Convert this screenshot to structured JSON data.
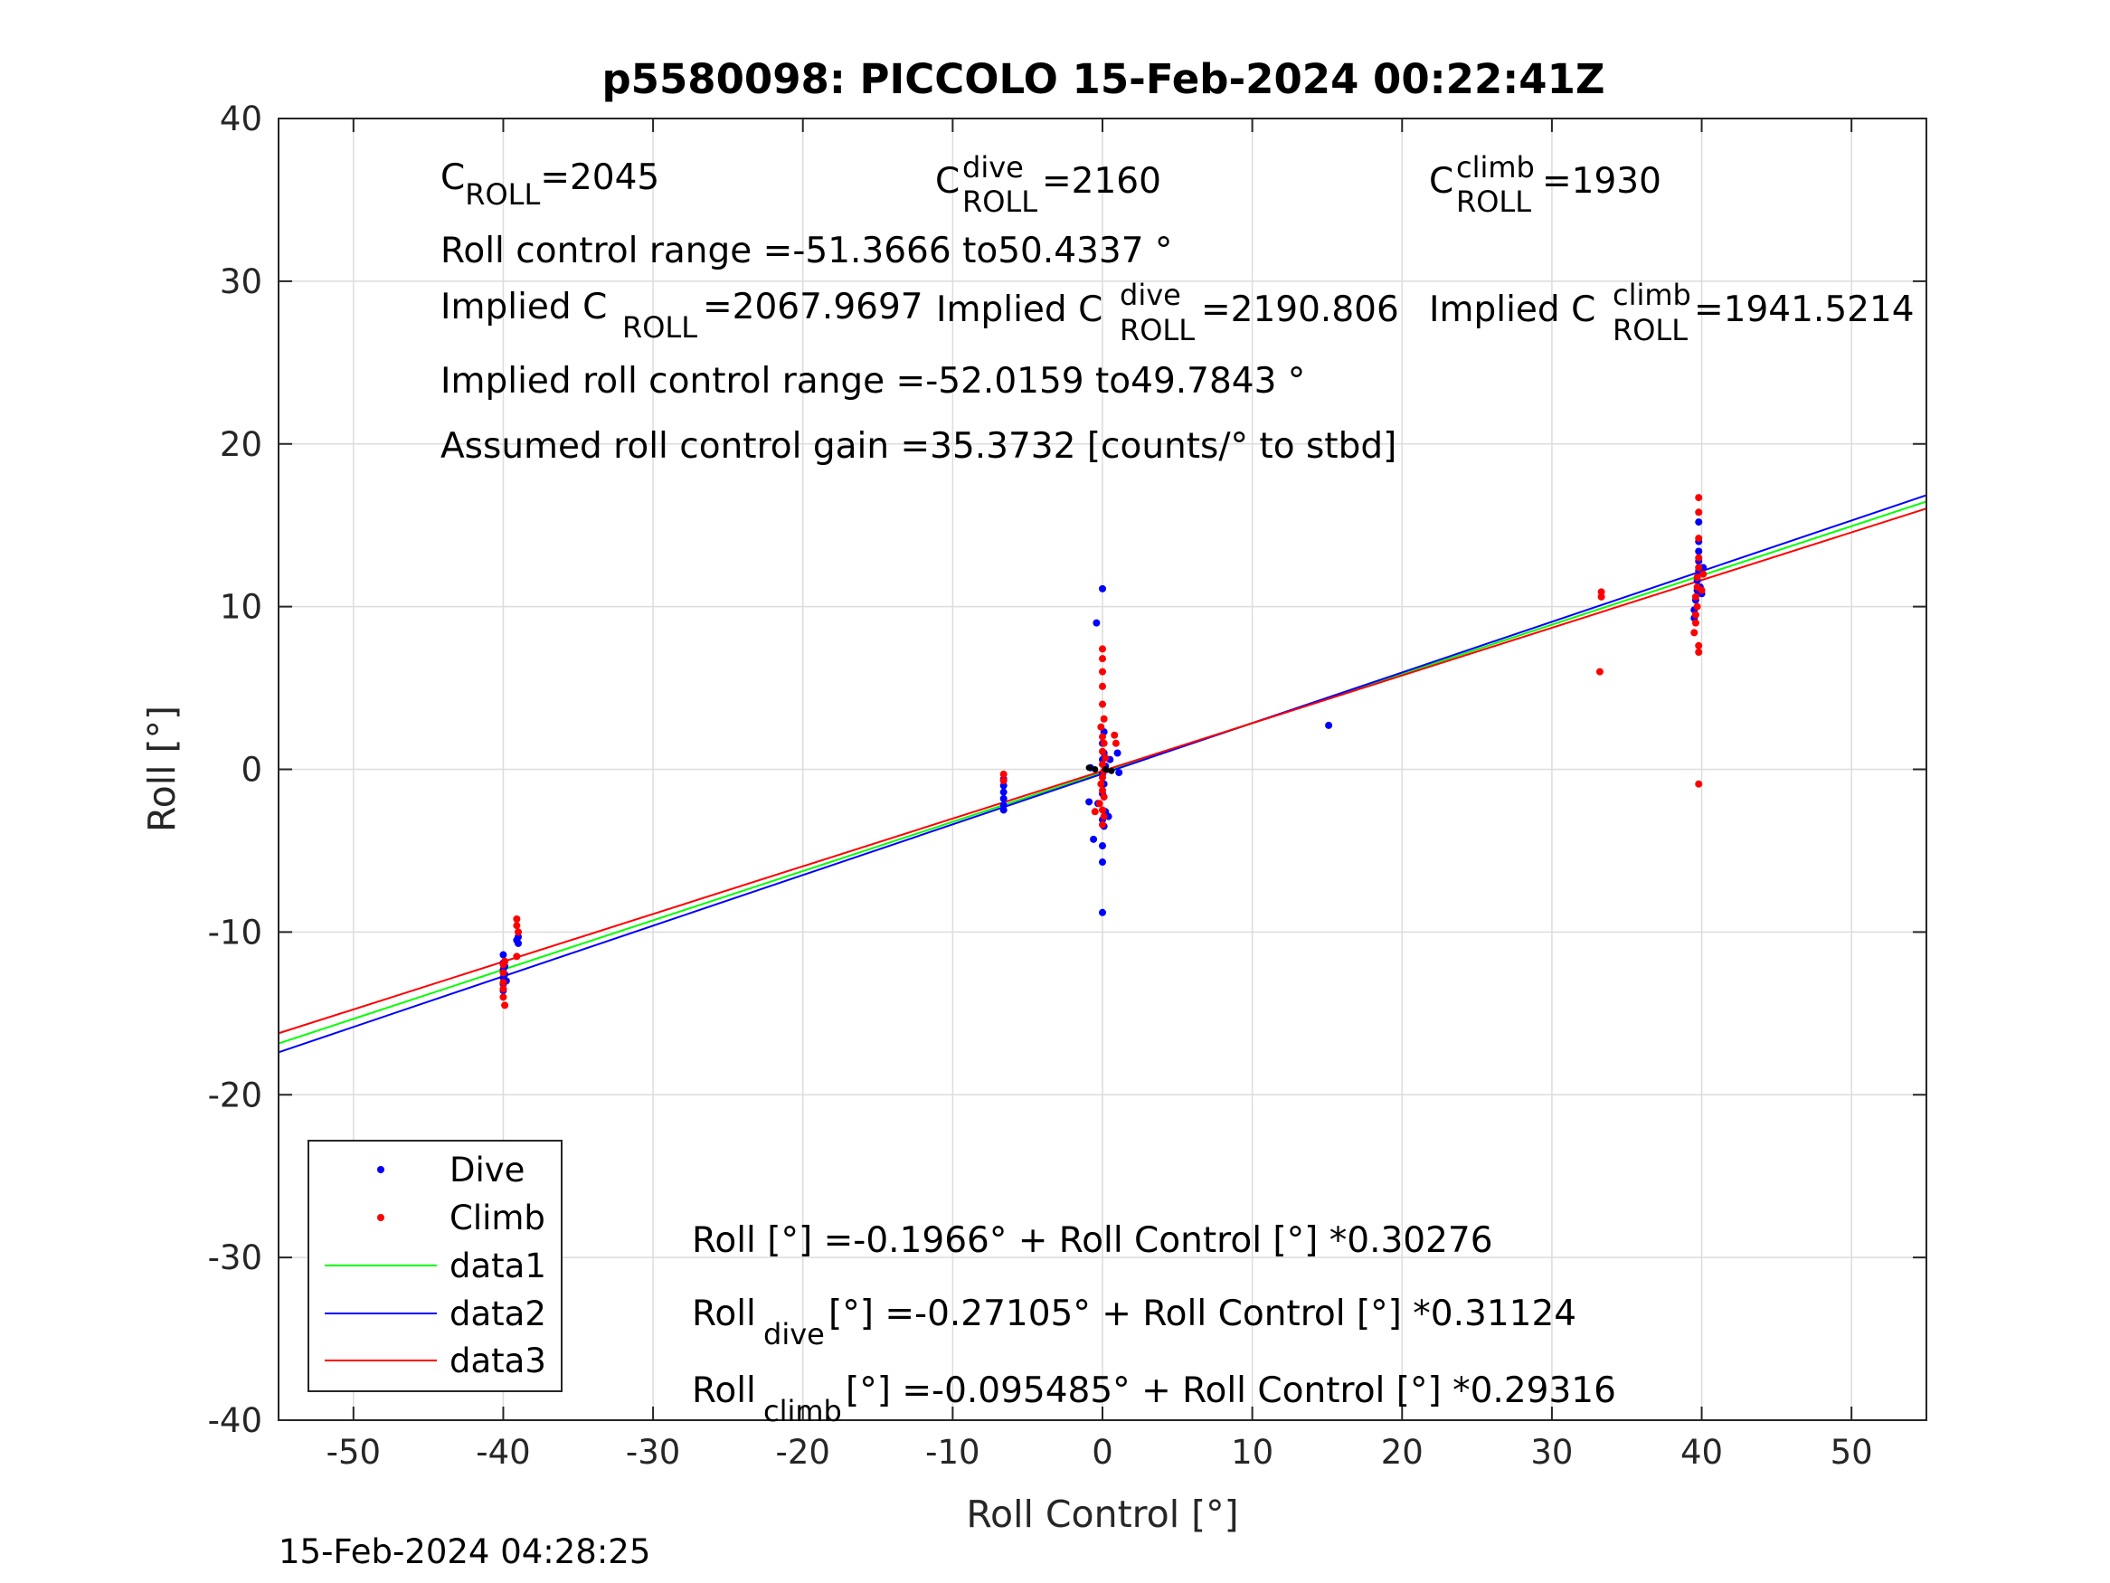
{
  "chart_data": {
    "type": "scatter",
    "title": "p5580098: PICCOLO 15-Feb-2024 00:22:41Z",
    "xlabel": "Roll Control [°]",
    "ylabel": "Roll [°]",
    "xlim": [
      -55,
      55
    ],
    "ylim": [
      -40,
      40
    ],
    "xticks": [
      -50,
      -40,
      -30,
      -20,
      -10,
      0,
      10,
      20,
      30,
      40,
      50
    ],
    "yticks": [
      -40,
      -30,
      -20,
      -10,
      0,
      10,
      20,
      30,
      40
    ],
    "xtick_labels": [
      "-50",
      "-40",
      "-30",
      "-20",
      "-10",
      "0",
      "10",
      "20",
      "30",
      "40",
      "50"
    ],
    "ytick_labels": [
      "-40",
      "-30",
      "-20",
      "-10",
      "0",
      "10",
      "20",
      "30",
      "40"
    ],
    "grid": true,
    "legend_position": "bottom-left",
    "legend": [
      "Dive",
      "Climb",
      "data1",
      "data2",
      "data3"
    ],
    "series": [
      {
        "name": "Dive",
        "kind": "points",
        "color": "#0000ff",
        "points": [
          [
            -40.0,
            -11.4
          ],
          [
            -40.0,
            -11.9
          ],
          [
            -40.0,
            -12.3
          ],
          [
            -40.0,
            -12.8
          ],
          [
            -40.0,
            -13.2
          ],
          [
            -40.0,
            -13.6
          ],
          [
            -39.9,
            -12.1
          ],
          [
            -39.9,
            -12.6
          ],
          [
            -39.8,
            -13.0
          ],
          [
            -39.1,
            -10.5
          ],
          [
            -39.0,
            -10.3
          ],
          [
            -39.0,
            -10.7
          ],
          [
            -6.6,
            -0.6
          ],
          [
            -6.6,
            -1.0
          ],
          [
            -6.6,
            -1.4
          ],
          [
            -6.6,
            -1.8
          ],
          [
            -6.6,
            -2.2
          ],
          [
            -6.6,
            -2.5
          ],
          [
            0.0,
            11.1
          ],
          [
            -0.4,
            9.0
          ],
          [
            0.1,
            2.3
          ],
          [
            0.0,
            1.6
          ],
          [
            0.1,
            1.0
          ],
          [
            0.0,
            0.6
          ],
          [
            0.2,
            0.2
          ],
          [
            0.0,
            -0.3
          ],
          [
            0.1,
            -0.9
          ],
          [
            0.0,
            -1.5
          ],
          [
            -0.3,
            -2.1
          ],
          [
            0.2,
            -2.6
          ],
          [
            0.0,
            -3.1
          ],
          [
            0.1,
            -3.5
          ],
          [
            -0.6,
            -4.3
          ],
          [
            0.0,
            -4.7
          ],
          [
            0.0,
            -5.7
          ],
          [
            0.0,
            -8.8
          ],
          [
            1.0,
            1.0
          ],
          [
            1.1,
            -0.2
          ],
          [
            0.4,
            -2.9
          ],
          [
            -0.8,
            0.1
          ],
          [
            -0.9,
            -2.0
          ],
          [
            0.5,
            0.6
          ],
          [
            15.1,
            2.7
          ],
          [
            39.5,
            9.3
          ],
          [
            39.5,
            9.8
          ],
          [
            39.6,
            10.4
          ],
          [
            39.7,
            11.0
          ],
          [
            39.7,
            11.6
          ],
          [
            39.8,
            12.2
          ],
          [
            39.8,
            12.8
          ],
          [
            39.8,
            13.4
          ],
          [
            39.8,
            14.0
          ],
          [
            39.8,
            15.2
          ],
          [
            39.9,
            11.2
          ],
          [
            40.1,
            12.4
          ],
          [
            40.0,
            10.8
          ]
        ]
      },
      {
        "name": "Climb",
        "kind": "points",
        "color": "#ff0000",
        "points": [
          [
            -40.0,
            -12.0
          ],
          [
            -40.0,
            -12.5
          ],
          [
            -40.0,
            -13.1
          ],
          [
            -40.0,
            -13.5
          ],
          [
            -40.0,
            -14.0
          ],
          [
            -39.9,
            -14.5
          ],
          [
            -39.9,
            -11.8
          ],
          [
            -39.1,
            -9.2
          ],
          [
            -39.1,
            -9.6
          ],
          [
            -39.0,
            -10.0
          ],
          [
            -39.1,
            -11.5
          ],
          [
            -6.6,
            -0.3
          ],
          [
            -6.6,
            -0.7
          ],
          [
            0.0,
            7.4
          ],
          [
            0.0,
            6.8
          ],
          [
            0.0,
            6.0
          ],
          [
            0.0,
            5.1
          ],
          [
            0.0,
            4.0
          ],
          [
            0.1,
            3.1
          ],
          [
            -0.1,
            2.6
          ],
          [
            0.0,
            2.0
          ],
          [
            0.1,
            1.6
          ],
          [
            0.0,
            1.1
          ],
          [
            0.2,
            0.7
          ],
          [
            0.0,
            0.3
          ],
          [
            0.1,
            -0.1
          ],
          [
            0.0,
            -0.5
          ],
          [
            -0.1,
            -0.9
          ],
          [
            0.0,
            -1.3
          ],
          [
            0.1,
            -1.7
          ],
          [
            -0.2,
            -2.1
          ],
          [
            0.0,
            -2.5
          ],
          [
            0.1,
            -2.9
          ],
          [
            0.0,
            -3.4
          ],
          [
            0.8,
            2.1
          ],
          [
            0.9,
            1.6
          ],
          [
            -0.5,
            -2.6
          ],
          [
            33.3,
            10.9
          ],
          [
            33.3,
            10.6
          ],
          [
            33.2,
            6.0
          ],
          [
            39.5,
            8.4
          ],
          [
            39.6,
            9.0
          ],
          [
            39.6,
            9.5
          ],
          [
            39.7,
            10.0
          ],
          [
            39.6,
            10.6
          ],
          [
            39.7,
            11.2
          ],
          [
            39.7,
            11.8
          ],
          [
            39.8,
            12.4
          ],
          [
            39.8,
            13.0
          ],
          [
            39.8,
            14.2
          ],
          [
            39.8,
            15.8
          ],
          [
            39.8,
            16.7
          ],
          [
            39.8,
            7.2
          ],
          [
            39.8,
            7.6
          ],
          [
            40.0,
            11.0
          ],
          [
            40.1,
            12.0
          ],
          [
            39.8,
            -0.9
          ]
        ]
      },
      {
        "name": "data1",
        "kind": "line",
        "color": "#00ff00",
        "x": [
          -55,
          55
        ],
        "y": [
          -16.85,
          16.46
        ]
      },
      {
        "name": "data2",
        "kind": "line",
        "color": "#0000ff",
        "x": [
          -55,
          55
        ],
        "y": [
          -17.39,
          16.85
        ]
      },
      {
        "name": "data3",
        "kind": "line",
        "color": "#ff0000",
        "x": [
          -55,
          55
        ],
        "y": [
          -16.22,
          16.03
        ]
      }
    ],
    "extra_points": {
      "color": "#000000",
      "points": [
        [
          -0.9,
          0.1
        ],
        [
          -0.5,
          0.0
        ],
        [
          0.2,
          0.0
        ],
        [
          0.6,
          -0.1
        ]
      ]
    },
    "annotations": {
      "c_roll": {
        "base": "C",
        "sub": "ROLL",
        "value": "=2045"
      },
      "c_roll_dive": {
        "base": "C",
        "sup": "dive",
        "sub": "ROLL",
        "value": " =2160"
      },
      "c_roll_climb": {
        "base": "C",
        "sup": "climb",
        "sub": "ROLL",
        "value": " =1930"
      },
      "control_range": "Roll control range =-51.3666 to50.4337 °",
      "implied_c_roll": {
        "prefix": "Implied C",
        "sub": "ROLL",
        "value": " =2067.9697"
      },
      "implied_c_roll_dive": {
        "prefix": "Implied C",
        "sup": "dive",
        "sub": "ROLL",
        "value": " =2190.806"
      },
      "implied_c_roll_climb": {
        "prefix": "Implied C",
        "sup": "climb",
        "sub": "ROLL",
        "value": " =1941.5214"
      },
      "implied_control_range": "Implied roll control range =-52.0159 to49.7843 °",
      "gain": "Assumed roll control gain =35.3732 [counts/° to stbd]",
      "fit_all": "Roll [°] =-0.1966° + Roll Control [°] *0.30276",
      "fit_dive": {
        "base": "Roll",
        "sub": "dive",
        "value": " [°] =-0.27105° + Roll Control [°] *0.31124"
      },
      "fit_climb": {
        "base": "Roll",
        "sub": "climb",
        "value": " [°] =-0.095485° + Roll Control [°] *0.29316"
      }
    },
    "footer": "15-Feb-2024 04:28:25"
  }
}
